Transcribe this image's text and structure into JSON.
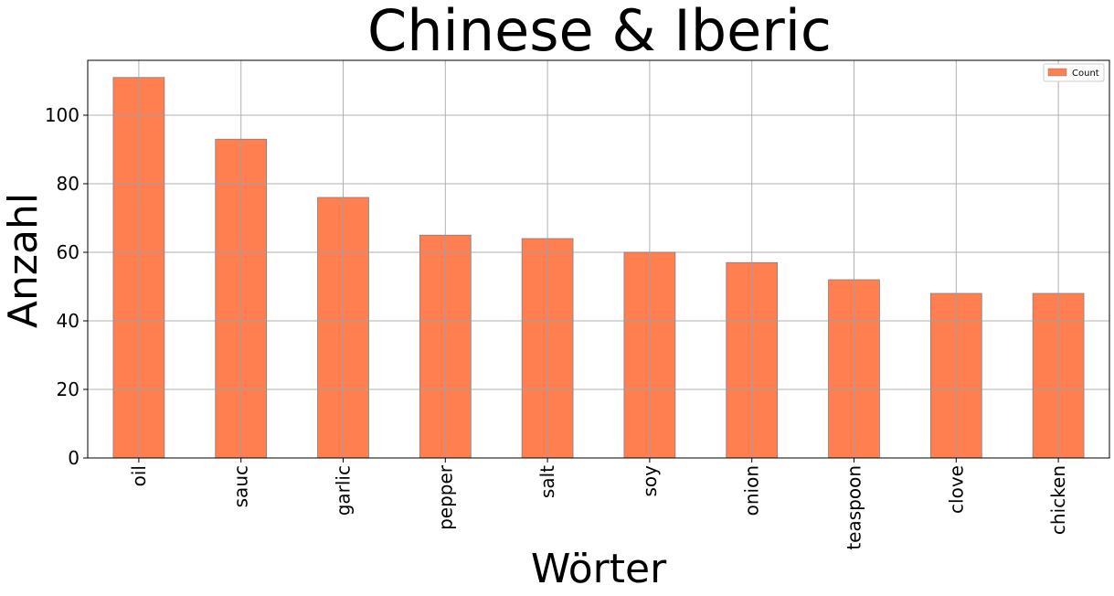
{
  "chart_data": {
    "type": "bar",
    "title": "Chinese & Iberic",
    "xlabel": "Wörter",
    "ylabel": "Anzahl",
    "categories": [
      "oil",
      "sauc",
      "garlic",
      "pepper",
      "salt",
      "soy",
      "onion",
      "teaspoon",
      "clove",
      "chicken"
    ],
    "series": [
      {
        "name": "Count",
        "values": [
          111,
          93,
          76,
          65,
          64,
          60,
          57,
          52,
          48,
          48
        ],
        "color": "#ff7f50"
      }
    ],
    "ylim": [
      0,
      116
    ],
    "yticks": [
      0,
      20,
      40,
      60,
      80,
      100
    ],
    "grid": true,
    "legend_position": "top-right"
  }
}
